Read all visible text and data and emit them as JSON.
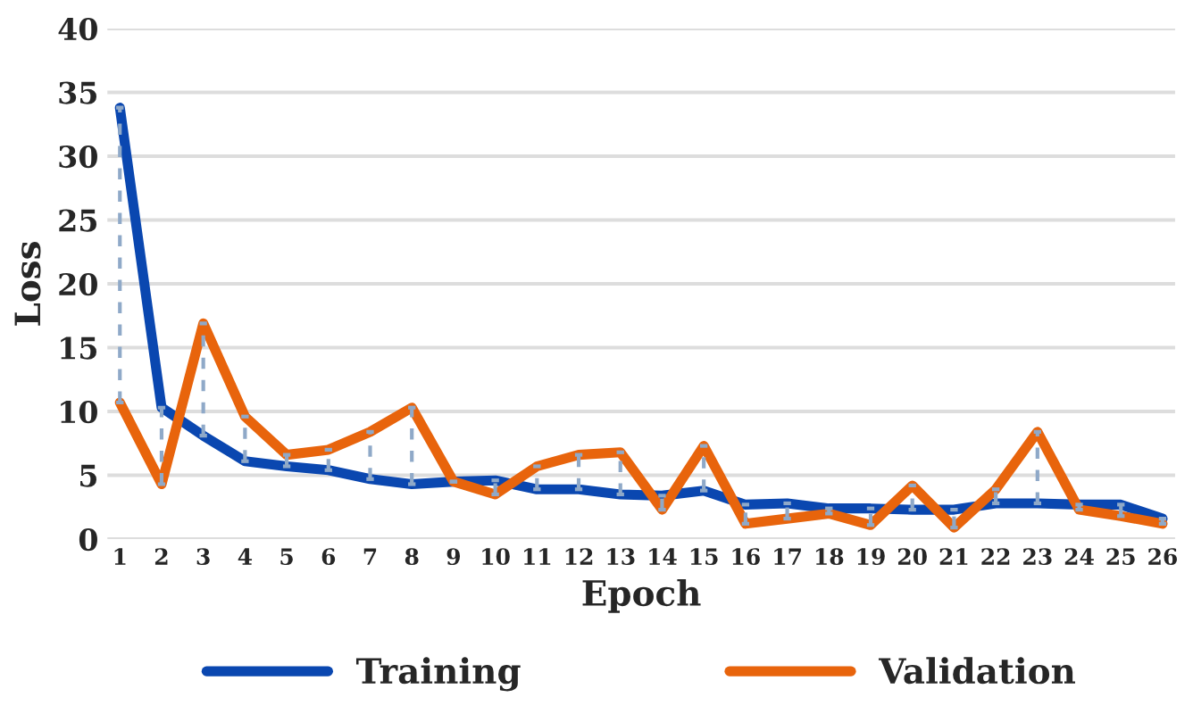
{
  "chart_data": {
    "type": "line",
    "xlabel": "Epoch",
    "ylabel": "Loss",
    "categories": [
      "1",
      "2",
      "3",
      "4",
      "5",
      "6",
      "7",
      "8",
      "9",
      "10",
      "11",
      "12",
      "13",
      "14",
      "15",
      "16",
      "17",
      "18",
      "19",
      "20",
      "21",
      "22",
      "23",
      "24",
      "25",
      "26"
    ],
    "series": [
      {
        "name": "Training",
        "color": "#0a47b0",
        "values": [
          33.8,
          10.3,
          8.1,
          6.1,
          5.7,
          5.4,
          4.7,
          4.3,
          4.5,
          4.6,
          3.9,
          3.9,
          3.5,
          3.4,
          3.8,
          2.7,
          2.8,
          2.4,
          2.4,
          2.3,
          2.3,
          2.8,
          2.8,
          2.7,
          2.7,
          1.6
        ],
        "errors": [
          [
            10.7,
            33.8
          ],
          [
            4.3,
            10.3
          ],
          [
            8.1,
            16.9
          ],
          [
            6.1,
            9.6
          ],
          [
            5.7,
            6.6
          ],
          [
            5.4,
            7.0
          ],
          [
            4.7,
            8.4
          ],
          [
            4.3,
            10.3
          ],
          [
            4.5,
            4.5
          ],
          [
            3.5,
            4.6
          ],
          [
            3.9,
            5.7
          ],
          [
            3.9,
            6.6
          ],
          [
            3.5,
            6.8
          ],
          [
            2.3,
            3.4
          ],
          [
            3.8,
            7.3
          ],
          [
            1.2,
            2.7
          ],
          [
            1.6,
            2.8
          ],
          [
            2.0,
            2.4
          ],
          [
            1.1,
            2.4
          ],
          [
            2.3,
            4.2
          ],
          [
            0.9,
            2.3
          ],
          [
            2.8,
            3.9
          ],
          [
            2.8,
            8.4
          ],
          [
            2.3,
            2.7
          ],
          [
            1.8,
            2.7
          ],
          [
            1.2,
            1.6
          ]
        ]
      },
      {
        "name": "Validation",
        "color": "#e8640c",
        "values": [
          10.7,
          4.3,
          16.9,
          9.6,
          6.6,
          7.0,
          8.4,
          10.3,
          4.5,
          3.5,
          5.7,
          6.6,
          6.8,
          2.3,
          7.3,
          1.2,
          1.6,
          2.0,
          1.1,
          4.2,
          0.9,
          3.9,
          8.4,
          2.3,
          1.8,
          1.2
        ]
      }
    ],
    "ylim": [
      0,
      40
    ],
    "yticks": [
      0,
      5,
      10,
      15,
      20,
      25,
      30,
      35,
      40
    ],
    "grid": "y",
    "legend": "bottom",
    "marker": "none",
    "line_style": "solid"
  }
}
